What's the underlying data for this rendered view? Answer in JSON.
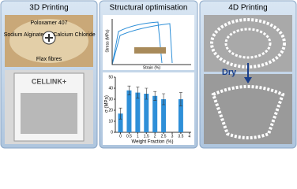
{
  "panels": [
    {
      "title": "3D Printing",
      "labels": [
        "Poloxamer 407",
        "Sodium Alginate",
        "Calcium Chloride",
        "Flax fibres",
        "CELLINK+"
      ]
    },
    {
      "title": "Structural optimisation",
      "top_chart": {
        "x_label": "Strain (%)",
        "y_label": "Stress (MPa)"
      }
    },
    {
      "title": "4D Printing",
      "labels": [
        "Dry"
      ]
    }
  ],
  "chart_data": {
    "type": "bar",
    "x_label": "Weight Fraction (%)",
    "y_label": "σ (MPa)",
    "x": [
      0,
      0.5,
      1,
      1.5,
      2,
      2.5,
      3.5
    ],
    "values": [
      17,
      38,
      36,
      35,
      33,
      30,
      30
    ],
    "errors": [
      5,
      4,
      5,
      5,
      4,
      5,
      6
    ],
    "color": "#2e8fd8",
    "xlim": [
      -0.3,
      4.1
    ],
    "xticks": [
      0,
      0.5,
      1,
      1.5,
      2,
      2.5,
      3,
      3.5,
      4
    ],
    "ylim": [
      0,
      50
    ],
    "yticks": [
      0,
      10,
      20,
      30,
      40,
      50
    ]
  }
}
